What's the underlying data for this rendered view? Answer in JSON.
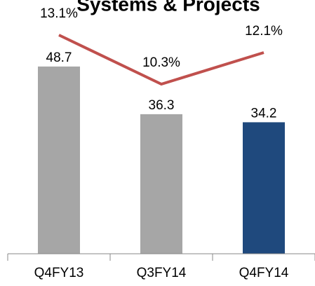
{
  "chart_data": {
    "type": "bar",
    "title": "Systems & Projects",
    "categories": [
      "Q4FY13",
      "Q3FY14",
      "Q4FY14"
    ],
    "ylim": [
      0,
      66
    ],
    "y2lim": [
      0.62,
      15.1
    ],
    "series": [
      {
        "type": "bar",
        "colors": [
          "#a6a6a6",
          "#a6a6a6",
          "#1f497d"
        ],
        "values": [
          48.7,
          36.3,
          34.2
        ]
      },
      {
        "type": "line",
        "axis": "y2",
        "color": "#c0504d",
        "values": [
          13.1,
          10.3,
          12.1
        ],
        "value_labels": [
          "13.1%",
          "10.3%",
          "12.1%"
        ]
      }
    ]
  }
}
